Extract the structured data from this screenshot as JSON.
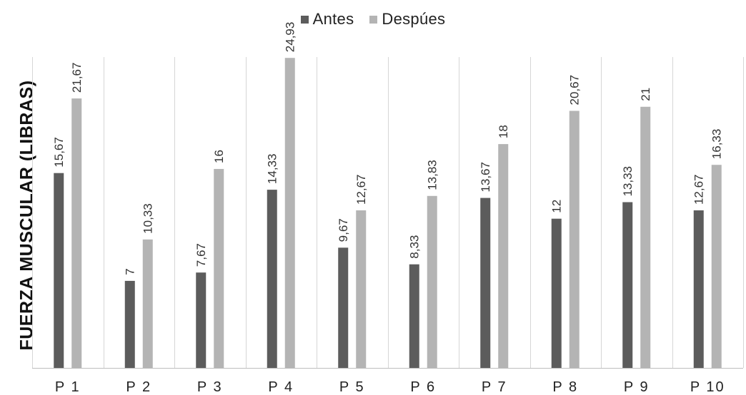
{
  "chart_data": {
    "type": "bar",
    "categories": [
      "P 1",
      "P 2",
      "P 3",
      "P 4",
      "P 5",
      "P 6",
      "P 7",
      "P 8",
      "P 9",
      "P 10"
    ],
    "series": [
      {
        "name": "Antes",
        "values": [
          15.67,
          7,
          7.67,
          14.33,
          9.67,
          8.33,
          13.67,
          12,
          13.33,
          12.67
        ],
        "labels": [
          "15,67",
          "7",
          "7,67",
          "14,33",
          "9,67",
          "8,33",
          "13,67",
          "12",
          "13,33",
          "12,67"
        ],
        "color": "#5c5c5c"
      },
      {
        "name": "Despúes",
        "values": [
          21.67,
          10.33,
          16,
          24.93,
          12.67,
          13.83,
          18,
          20.67,
          21,
          16.33
        ],
        "labels": [
          "21,67",
          "10,33",
          "16",
          "24,93",
          "12,67",
          "13,83",
          "18",
          "20,67",
          "21",
          "16,33"
        ],
        "color": "#b4b4b4"
      }
    ],
    "title": "",
    "xlabel": "",
    "ylabel": "FUERZA MUSCULAR (LIBRAS)",
    "ylim": [
      0,
      25
    ],
    "grid": "vertical category separators",
    "legend": "top-center"
  }
}
